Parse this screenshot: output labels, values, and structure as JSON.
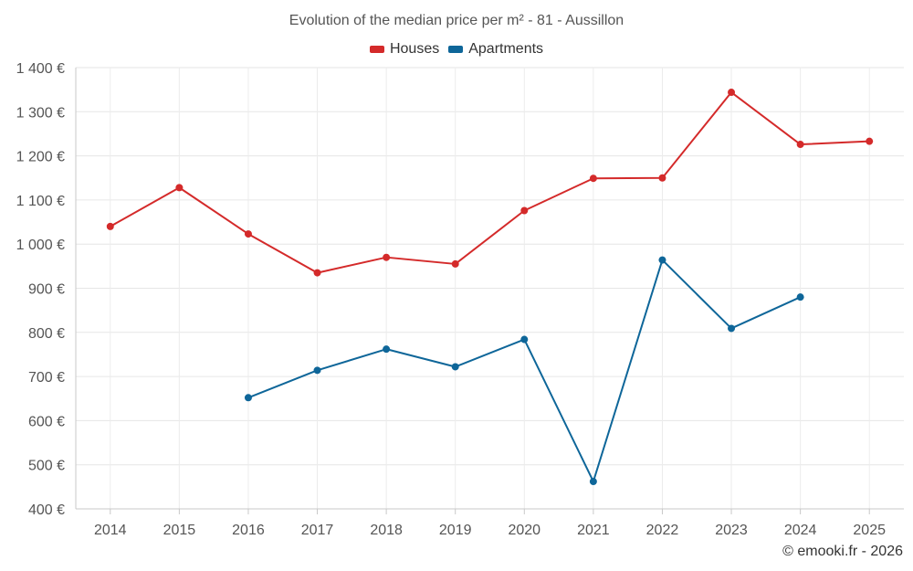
{
  "chart_data": {
    "type": "line",
    "title": "Evolution of the median price per m² - 81 - Aussillon",
    "categories": [
      "2014",
      "2015",
      "2016",
      "2017",
      "2018",
      "2019",
      "2020",
      "2021",
      "2022",
      "2023",
      "2024",
      "2025"
    ],
    "series": [
      {
        "name": "Houses",
        "color": "#d42a2a",
        "values": [
          1040,
          1128,
          1023,
          935,
          970,
          955,
          1076,
          1149,
          1150,
          1344,
          1226,
          1233
        ]
      },
      {
        "name": "Apartments",
        "color": "#0e6699",
        "values": [
          null,
          null,
          652,
          714,
          762,
          722,
          784,
          462,
          964,
          809,
          880,
          null
        ]
      }
    ],
    "ylim": [
      400,
      1400
    ],
    "yticks": [
      400,
      500,
      600,
      700,
      800,
      900,
      1000,
      1100,
      1200,
      1300,
      1400
    ],
    "ytick_labels": [
      "400 €",
      "500 €",
      "600 €",
      "700 €",
      "800 €",
      "900 €",
      "1 000 €",
      "1 100 €",
      "1 200 €",
      "1 300 €",
      "1 400 €"
    ],
    "xlabel": "",
    "ylabel": "",
    "grid": true,
    "legend_position": "top-center"
  },
  "copyright": "© emooki.fr - 2026"
}
